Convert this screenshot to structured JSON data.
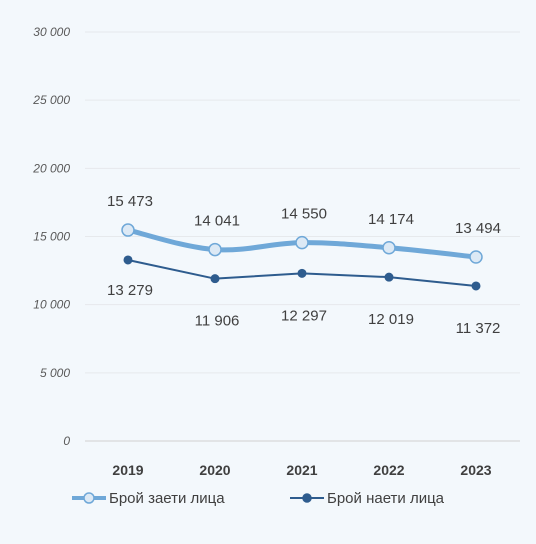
{
  "chart_data": {
    "type": "line",
    "categories": [
      "2019",
      "2020",
      "2021",
      "2022",
      "2023"
    ],
    "ylim": [
      0,
      30000
    ],
    "y_ticks": [
      "0",
      "5 000",
      "10 000",
      "15 000",
      "20 000",
      "25 000",
      "30 000"
    ],
    "grid": true,
    "legend_position": "bottom",
    "series": [
      {
        "name": "Брой заети лица",
        "values": [
          15473,
          14041,
          14550,
          14174,
          13494
        ],
        "labels": [
          "15 473",
          "14 041",
          "14 550",
          "14 174",
          "13 494"
        ],
        "color": "#6fa8d8",
        "marker_fill": "#dce9f5",
        "smooth": true,
        "label_position": "above"
      },
      {
        "name": "Брой наети лица",
        "values": [
          13279,
          11906,
          12297,
          12019,
          11372
        ],
        "labels": [
          "13 279",
          "11 906",
          "12 297",
          "12 019",
          "11 372"
        ],
        "color": "#2e5c8e",
        "marker_fill": "#2e5c8e",
        "smooth": false,
        "label_position": "below"
      }
    ]
  }
}
